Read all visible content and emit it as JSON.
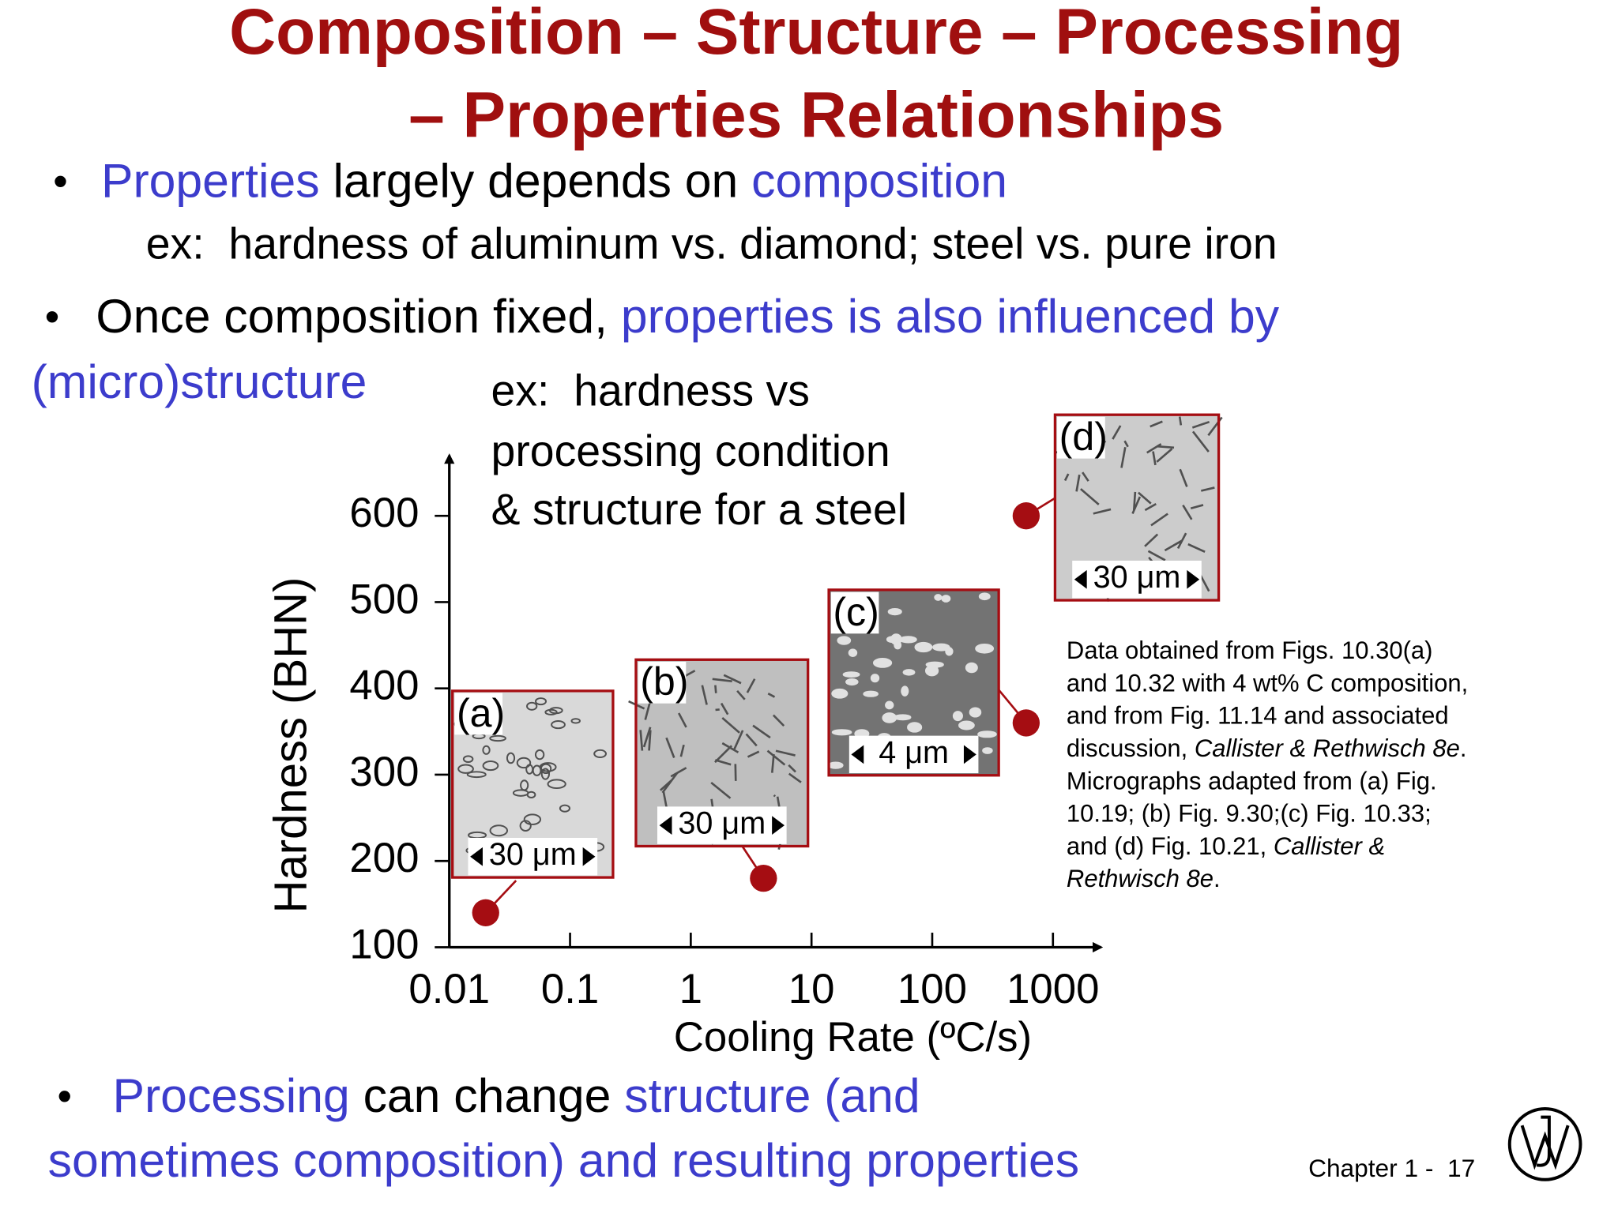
{
  "title": {
    "lines": [
      "Composition – Structure – Processing",
      "– Properties Relationships"
    ],
    "color": "#a00f0f"
  },
  "bullet_symbol": "•",
  "bullets": [
    {
      "lines": [
        [
          {
            "text": "Properties",
            "color": "#3c3ccc"
          },
          {
            "text": " largely depends on ",
            "color": "#000000"
          },
          {
            "text": "composition",
            "color": "#3c3ccc"
          }
        ]
      ],
      "sub": "ex:  hardness of aluminum vs. diamond; steel vs. pure iron"
    },
    {
      "lines": [
        [
          {
            "text": "Once composition fixed, ",
            "color": "#000000"
          },
          {
            "text": "properties is also influenced by",
            "color": "#3c3ccc"
          }
        ],
        [
          {
            "text": "(micro)structure",
            "color": "#3c3ccc"
          }
        ]
      ]
    },
    {
      "lines": [
        [
          {
            "text": "Processing",
            "color": "#3c3ccc"
          },
          {
            "text": " can change ",
            "color": "#000000"
          },
          {
            "text": "structure (and",
            "color": "#3c3ccc"
          }
        ],
        [
          {
            "text": "sometimes composition) and resulting properties",
            "color": "#3c3ccc"
          }
        ]
      ]
    }
  ],
  "chart_data": {
    "type": "scatter",
    "annotation": [
      "ex:  hardness vs",
      "processing condition",
      "& structure for a steel"
    ],
    "x_label": "Cooling Rate (ºC/s)",
    "y_label": "Hardness (BHN)",
    "x": [
      0.02,
      4,
      600,
      600
    ],
    "values": [
      140,
      180,
      360,
      600
    ],
    "color": "#a50d12",
    "xlim": [
      0.01,
      2500
    ],
    "ylim": [
      100,
      670
    ],
    "x_log": true,
    "xticks": [
      0.01,
      0.1,
      1,
      10,
      100,
      1000
    ],
    "yticks": [
      100,
      200,
      300,
      400,
      500,
      600
    ],
    "micrographs": [
      {
        "label": "(a)",
        "scale": "30 μm"
      },
      {
        "label": "(b)",
        "scale": "30 μm"
      },
      {
        "label": "(c)",
        "scale": "4 μm"
      },
      {
        "label": "(d)",
        "scale": "30 μm"
      }
    ]
  },
  "note": [
    [
      {
        "text": "Data obtained from Figs. 10.30(a)",
        "style": "normal"
      }
    ],
    [
      {
        "text": "and 10.32 with 4 wt% C composition,",
        "style": "normal"
      }
    ],
    [
      {
        "text": "and from Fig. 11.14 and associated",
        "style": "normal"
      }
    ],
    [
      {
        "text": "discussion, ",
        "style": "normal"
      },
      {
        "text": "Callister & Rethwisch 8e",
        "style": "italic"
      },
      {
        "text": ".",
        "style": "normal"
      }
    ],
    [
      {
        "text": "Micrographs adapted from (a) Fig.",
        "style": "normal"
      }
    ],
    [
      {
        "text": "10.19; (b) Fig. 9.30;(c) Fig. 10.33;",
        "style": "normal"
      }
    ],
    [
      {
        "text": "and (d) Fig. 10.21, ",
        "style": "normal"
      },
      {
        "text": "Callister &",
        "style": "italic"
      }
    ],
    [
      {
        "text": "Rethwisch 8e",
        "style": "italic"
      },
      {
        "text": ".",
        "style": "normal"
      }
    ]
  ],
  "footer": "Chapter 1 -  17"
}
